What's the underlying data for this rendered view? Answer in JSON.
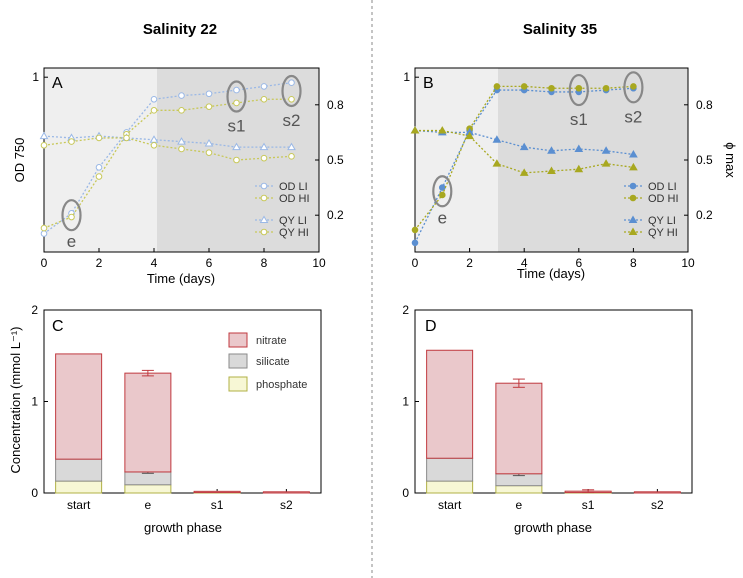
{
  "titles": {
    "left": "Salinity 22",
    "right": "Salinity 35"
  },
  "panels": {
    "a": "A",
    "b": "B",
    "c": "C",
    "d": "D"
  },
  "colors": {
    "blue": "#5b8fd1",
    "gold": "#a8a820",
    "light_blue": "#9ab8e6",
    "light_gold": "#c8c85a",
    "shade_light": "#efefef",
    "shade_dark": "#dcdcdc",
    "nitrate_fill": "#eac8cb",
    "nitrate_stroke": "#c0393f",
    "silicate_fill": "#d9d9d9",
    "silicate_stroke": "#8a8a8a",
    "phosphate_fill": "#f7f7d5",
    "phosphate_stroke": "#b0b045"
  },
  "chart_data": [
    {
      "id": "A",
      "type": "line",
      "title": "Salinity 22",
      "xlabel": "Time (days)",
      "ylabel": "OD 750",
      "xlim": [
        0,
        10
      ],
      "xticks": [
        0,
        2,
        4,
        6,
        8,
        10
      ],
      "ylim_left": [
        0.05,
        1.05
      ],
      "yticks_left": [
        1
      ],
      "ylim_right": [
        0,
        1.0
      ],
      "yticks_right": [
        0.2,
        0.5,
        0.8
      ],
      "shade_split_day": 4,
      "series": [
        {
          "name": "OD LI",
          "axis": "left",
          "marker": "circle",
          "color": "#9ab8e6",
          "x": [
            0,
            1,
            2,
            3,
            4,
            5,
            6,
            7,
            8,
            9
          ],
          "y": [
            0.15,
            0.26,
            0.51,
            0.7,
            0.88,
            0.9,
            0.91,
            0.93,
            0.95,
            0.97
          ]
        },
        {
          "name": "OD HI",
          "axis": "left",
          "marker": "circle",
          "color": "#c8c85a",
          "x": [
            0,
            1,
            2,
            3,
            4,
            5,
            6,
            7,
            8,
            9
          ],
          "y": [
            0.18,
            0.24,
            0.46,
            0.69,
            0.82,
            0.82,
            0.84,
            0.86,
            0.88,
            0.88
          ]
        },
        {
          "name": "QY LI",
          "axis": "right",
          "marker": "triangle",
          "color": "#9ab8e6",
          "x": [
            0,
            1,
            2,
            3,
            4,
            5,
            6,
            7,
            8,
            9
          ],
          "y": [
            0.63,
            0.62,
            0.63,
            0.62,
            0.61,
            0.6,
            0.59,
            0.57,
            0.57,
            0.57
          ]
        },
        {
          "name": "QY HI",
          "axis": "right",
          "marker": "circle",
          "color": "#c8c85a",
          "x": [
            0,
            1,
            2,
            3,
            4,
            5,
            6,
            7,
            8,
            9
          ],
          "y": [
            0.58,
            0.6,
            0.62,
            0.62,
            0.58,
            0.56,
            0.54,
            0.5,
            0.51,
            0.52
          ]
        }
      ],
      "annotations": [
        {
          "label": "e",
          "x": 1
        },
        {
          "label": "s1",
          "x": 7
        },
        {
          "label": "s2",
          "x": 9
        }
      ]
    },
    {
      "id": "B",
      "type": "line",
      "title": "Salinity 35",
      "xlabel": "Time (days)",
      "ylabel_right": "ϕ max",
      "xlim": [
        0,
        10
      ],
      "xticks": [
        0,
        2,
        4,
        6,
        8,
        10
      ],
      "ylim_left": [
        0.05,
        1.05
      ],
      "yticks_left": [
        1
      ],
      "ylim_right": [
        0,
        1.0
      ],
      "yticks_right": [
        0.2,
        0.5,
        0.8
      ],
      "shade_split_day": 3,
      "series": [
        {
          "name": "OD LI",
          "axis": "left",
          "marker": "circle",
          "color": "#5b8fd1",
          "x": [
            0,
            1,
            2,
            3,
            4,
            5,
            6,
            7,
            8
          ],
          "y": [
            0.1,
            0.4,
            0.71,
            0.93,
            0.93,
            0.92,
            0.92,
            0.93,
            0.94
          ]
        },
        {
          "name": "OD HI",
          "axis": "left",
          "marker": "circle",
          "color": "#a8a820",
          "x": [
            0,
            1,
            2,
            3,
            4,
            5,
            6,
            7,
            8
          ],
          "y": [
            0.17,
            0.36,
            0.72,
            0.95,
            0.95,
            0.94,
            0.94,
            0.94,
            0.95
          ]
        },
        {
          "name": "QY LI",
          "axis": "right",
          "marker": "triangle",
          "color": "#5b8fd1",
          "x": [
            0,
            1,
            2,
            3,
            4,
            5,
            6,
            7,
            8
          ],
          "y": [
            0.66,
            0.65,
            0.65,
            0.61,
            0.57,
            0.55,
            0.56,
            0.55,
            0.53
          ]
        },
        {
          "name": "QY HI",
          "axis": "right",
          "marker": "triangle",
          "color": "#a8a820",
          "x": [
            0,
            1,
            2,
            3,
            4,
            5,
            6,
            7,
            8
          ],
          "y": [
            0.66,
            0.66,
            0.63,
            0.48,
            0.43,
            0.44,
            0.45,
            0.48,
            0.46
          ]
        }
      ],
      "annotations": [
        {
          "label": "e",
          "x": 1
        },
        {
          "label": "s1",
          "x": 6
        },
        {
          "label": "s2",
          "x": 8
        }
      ]
    },
    {
      "id": "C",
      "type": "bar",
      "stacked": true,
      "xlabel": "growth phase",
      "ylabel": "Concentration (mmol L⁻¹)",
      "ylim": [
        0,
        2
      ],
      "yticks": [
        0,
        1,
        2
      ],
      "categories": [
        "start",
        "e",
        "s1",
        "s2"
      ],
      "series": [
        {
          "name": "phosphate",
          "values": [
            0.13,
            0.09,
            0.005,
            0.0
          ]
        },
        {
          "name": "silicate",
          "values": [
            0.24,
            0.14,
            0.0,
            0.0
          ]
        },
        {
          "name": "nitrate",
          "values": [
            1.15,
            1.08,
            0.005,
            0.01
          ]
        }
      ],
      "error_tops": [
        null,
        0.03,
        null,
        null
      ],
      "error_silicate": [
        null,
        0.015,
        null,
        null
      ],
      "legend": [
        "nitrate",
        "silicate",
        "phosphate"
      ]
    },
    {
      "id": "D",
      "type": "bar",
      "stacked": true,
      "xlabel": "growth phase",
      "ylim": [
        0,
        2
      ],
      "yticks": [
        0,
        1,
        2
      ],
      "categories": [
        "start",
        "e",
        "s1",
        "s2"
      ],
      "series": [
        {
          "name": "phosphate",
          "values": [
            0.13,
            0.08,
            0.005,
            0.0
          ]
        },
        {
          "name": "silicate",
          "values": [
            0.25,
            0.13,
            0.0,
            0.0
          ]
        },
        {
          "name": "nitrate",
          "values": [
            1.18,
            0.99,
            0.015,
            0.01
          ]
        }
      ],
      "error_tops": [
        null,
        0.045,
        0.015,
        null
      ],
      "error_silicate": [
        null,
        0.02,
        null,
        null
      ]
    }
  ]
}
